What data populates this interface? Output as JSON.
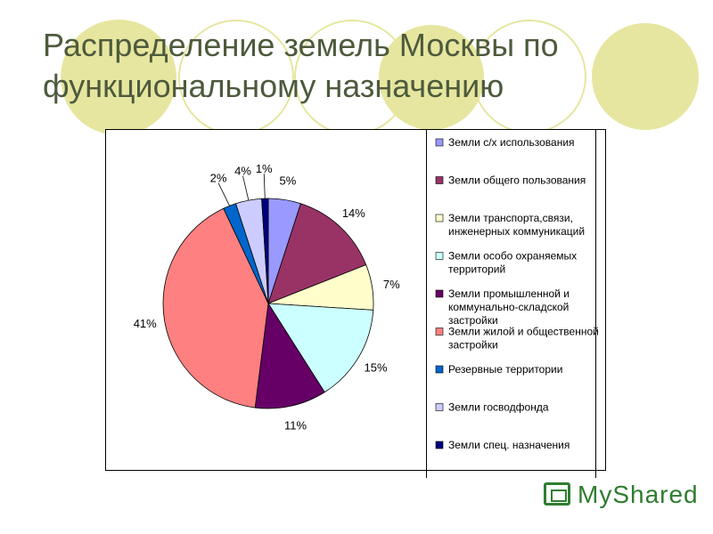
{
  "slide": {
    "title": "Распределение земель Москвы по функциональному назначению",
    "watermark": "MyShared"
  },
  "colors": {
    "title": "#4d5a3c",
    "decor": "#e6e6a0"
  },
  "chart_data": {
    "type": "pie",
    "title": "",
    "legend_position": "right",
    "slices": [
      {
        "label": "Земли с/х использования",
        "value": 5,
        "display": "5%",
        "color": "#9999ff"
      },
      {
        "label": "Земли общего пользования",
        "value": 14,
        "display": "14%",
        "color": "#993366"
      },
      {
        "label": "Земли транспорта,связи, инженерных коммуникаций",
        "value": 7,
        "display": "7%",
        "color": "#ffffcc"
      },
      {
        "label": "Земли особо охраняемых территорий",
        "value": 15,
        "display": "15%",
        "color": "#ccffff"
      },
      {
        "label": "Земли промышленной и коммунально-складской застройки",
        "value": 11,
        "display": "11%",
        "color": "#660066"
      },
      {
        "label": "Земли жилой и общественной застройки",
        "value": 41,
        "display": "41%",
        "color": "#ff8080"
      },
      {
        "label": "Резервные территории",
        "value": 2,
        "display": "2%",
        "color": "#0066cc"
      },
      {
        "label": "Земли госводфонда",
        "value": 4,
        "display": "4%",
        "color": "#ccccff"
      },
      {
        "label": "Земли спец. назначения",
        "value": 1,
        "display": "1%",
        "color": "#000080"
      }
    ]
  }
}
